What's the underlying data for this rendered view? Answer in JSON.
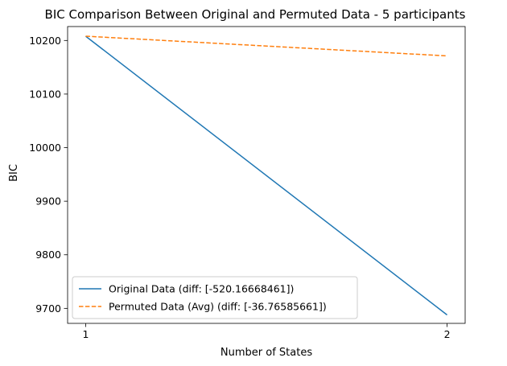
{
  "chart_data": {
    "type": "line",
    "title": "BIC Comparison Between Original and Permuted Data - 5 participants",
    "xlabel": "Number of States",
    "ylabel": "BIC",
    "x": [
      1,
      2
    ],
    "xticks": [
      "1",
      "2"
    ],
    "yticks": [
      "9700",
      "9800",
      "9900",
      "10000",
      "10100",
      "10200"
    ],
    "ylim": [
      9672,
      10226
    ],
    "grid": false,
    "legend_position": "lower-left",
    "series": [
      {
        "name": "Original Data (diff: [-520.16668461])",
        "values": [
          10208,
          9687.8
        ],
        "color": "#1f77b4",
        "style": "solid"
      },
      {
        "name": "Permuted Data (Avg) (diff: [-36.76585661])",
        "values": [
          10208,
          10171.2
        ],
        "color": "#ff7f0e",
        "style": "dashed"
      }
    ]
  }
}
